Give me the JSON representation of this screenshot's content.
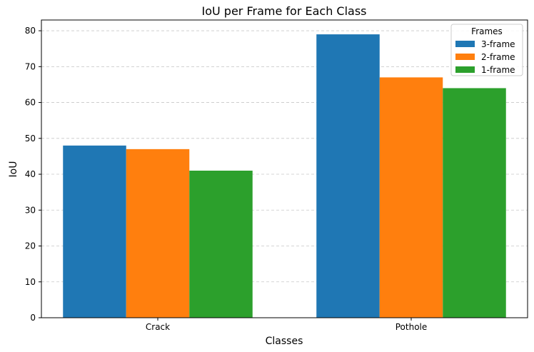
{
  "chart_data": {
    "type": "bar",
    "title": "IoU per Frame for Each Class",
    "xlabel": "Classes",
    "ylabel": "IoU",
    "categories": [
      "Crack",
      "Pothole"
    ],
    "series": [
      {
        "name": "3-frame",
        "values": [
          48,
          79
        ],
        "color": "#1f77b4"
      },
      {
        "name": "2-frame",
        "values": [
          47,
          67
        ],
        "color": "#ff7f0e"
      },
      {
        "name": "1-frame",
        "values": [
          41,
          64
        ],
        "color": "#2ca02c"
      }
    ],
    "ylim": [
      0,
      83
    ],
    "yticks": [
      0,
      10,
      20,
      30,
      40,
      50,
      60,
      70,
      80
    ],
    "grid": "y-dashed",
    "legend": {
      "title": "Frames",
      "placement": "top-right"
    }
  }
}
